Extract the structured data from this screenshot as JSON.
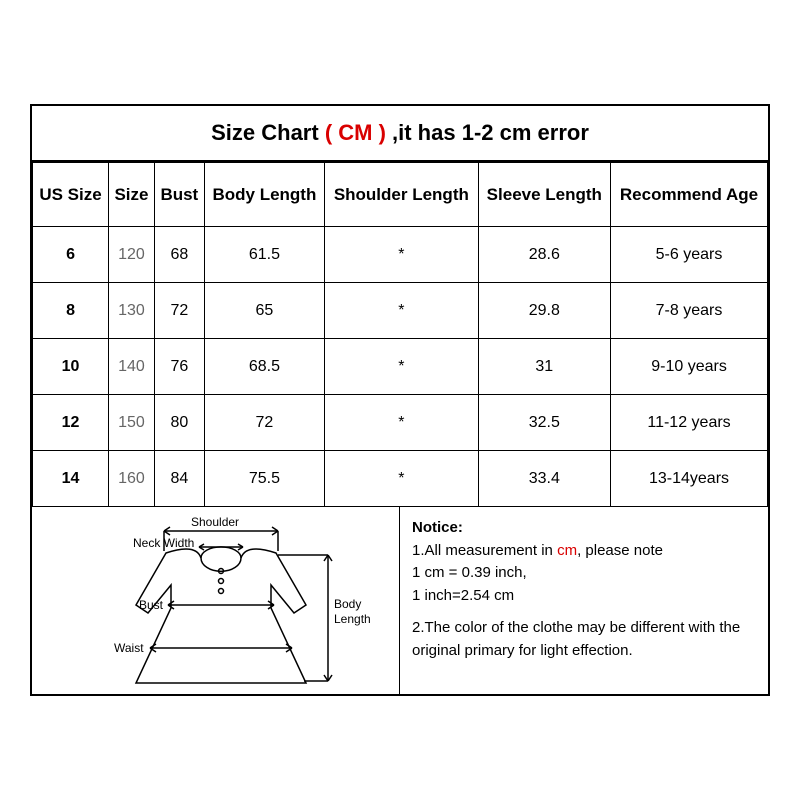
{
  "title": {
    "part1": "Size Chart ",
    "cm": "( CM )",
    "part2": " ,it has 1-2 cm error"
  },
  "columns": [
    "US Size",
    "Size",
    "Bust",
    "Body Length",
    "Shoulder Length",
    "Sleeve Length",
    "Recommend Age"
  ],
  "rows": [
    {
      "us": "6",
      "size": "120",
      "bust": "68",
      "body": "61.5",
      "shoulder": "*",
      "sleeve": "28.6",
      "age": "5-6 years"
    },
    {
      "us": "8",
      "size": "130",
      "bust": "72",
      "body": "65",
      "shoulder": "*",
      "sleeve": "29.8",
      "age": "7-8 years"
    },
    {
      "us": "10",
      "size": "140",
      "bust": "76",
      "body": "68.5",
      "shoulder": "*",
      "sleeve": "31",
      "age": "9-10 years"
    },
    {
      "us": "12",
      "size": "150",
      "bust": "80",
      "body": "72",
      "shoulder": "*",
      "sleeve": "32.5",
      "age": "11-12 years"
    },
    {
      "us": "14",
      "size": "160",
      "bust": "84",
      "body": "75.5",
      "shoulder": "*",
      "sleeve": "33.4",
      "age": "13-14years"
    }
  ],
  "diagram": {
    "labels": {
      "shoulder": "Shoulder",
      "neck": "Neck Width",
      "bust": "Bust",
      "waist": "Waist",
      "body": "Body Length"
    }
  },
  "notice": {
    "header": "Notice:",
    "line1a": "1.All measurement in ",
    "cm": "cm",
    "line1b": ",   please note",
    "line2": "1 cm = 0.39 inch,",
    "line3": " 1 inch=2.54 cm",
    "line4": "2.The color of the clothe may be different with the original primary for light effection."
  }
}
